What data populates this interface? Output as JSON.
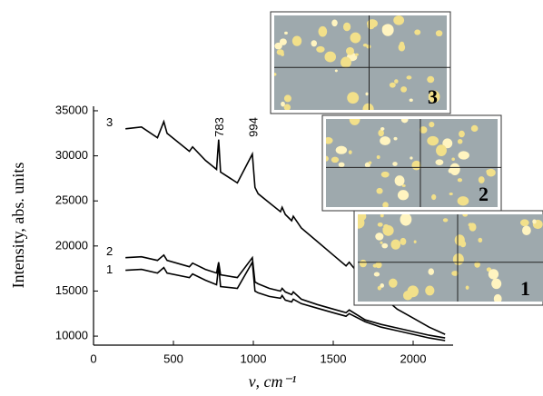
{
  "chart_data": {
    "type": "line",
    "x_label": "ν, cm⁻¹",
    "y_label": "Intensity, abs. units",
    "xlim": [
      0,
      2250
    ],
    "ylim": [
      9000,
      35500
    ],
    "xticks": [
      0,
      500,
      1000,
      1500,
      2000
    ],
    "yticks": [
      10000,
      15000,
      20000,
      25000,
      30000,
      35000
    ],
    "x": [
      200,
      300,
      400,
      440,
      460,
      600,
      620,
      700,
      770,
      783,
      795,
      900,
      994,
      1010,
      1030,
      1100,
      1170,
      1180,
      1200,
      1240,
      1250,
      1300,
      1400,
      1500,
      1580,
      1600,
      1700,
      1800,
      1900,
      2000,
      2100,
      2200
    ],
    "series": [
      {
        "name": "1",
        "color": "#000000",
        "values": [
          17300,
          17400,
          17000,
          17600,
          17000,
          16500,
          16900,
          16200,
          15700,
          17800,
          15500,
          15300,
          18200,
          15000,
          14800,
          14400,
          14200,
          14500,
          14000,
          13800,
          14100,
          13600,
          13100,
          12600,
          12200,
          12500,
          11600,
          11000,
          10600,
          10200,
          9800,
          9500
        ]
      },
      {
        "name": "2",
        "color": "#000000",
        "values": [
          18700,
          18800,
          18400,
          19000,
          18400,
          17700,
          18100,
          17400,
          17000,
          18200,
          16800,
          16500,
          18700,
          16000,
          15800,
          15300,
          15000,
          15300,
          14900,
          14600,
          14900,
          14100,
          13500,
          13000,
          12600,
          12900,
          11800,
          11300,
          10900,
          10500,
          10100,
          9800
        ]
      },
      {
        "name": "3",
        "color": "#000000",
        "values": [
          33000,
          33200,
          32000,
          33800,
          32500,
          30500,
          31000,
          29500,
          28500,
          31800,
          28200,
          27000,
          30200,
          26500,
          25800,
          24800,
          23800,
          24300,
          23500,
          22800,
          23300,
          22000,
          20500,
          19000,
          17800,
          18200,
          16000,
          14500,
          13000,
          12000,
          11000,
          10200
        ]
      }
    ],
    "annotations": [
      {
        "text": "783",
        "x": 783
      },
      {
        "text": "994",
        "x": 994
      }
    ],
    "insets": [
      {
        "label": "3"
      },
      {
        "label": "2"
      },
      {
        "label": "1"
      }
    ]
  }
}
